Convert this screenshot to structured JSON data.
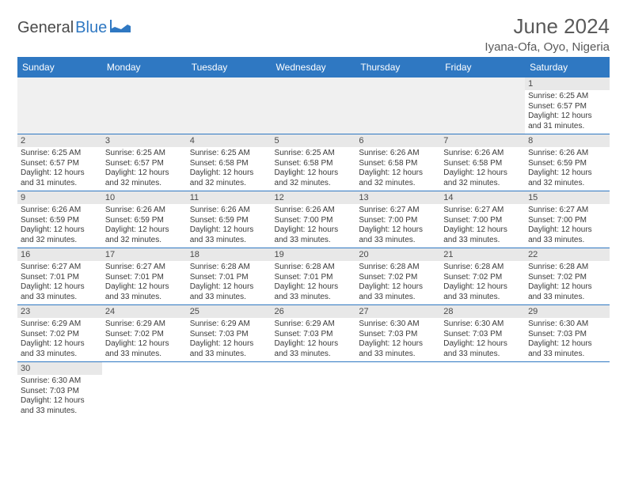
{
  "brand": {
    "text_dark": "General",
    "text_blue": "Blue"
  },
  "header": {
    "month_title": "June 2024",
    "location": "Iyana-Ofa, Oyo, Nigeria"
  },
  "colors": {
    "header_bg": "#2f78c2",
    "header_text": "#ffffff",
    "daynum_bg": "#e8e8e8",
    "row_divider": "#2f78c2",
    "body_text": "#3a3a3a",
    "title_text": "#5a5a5a",
    "empty_bg": "#f0f0f0"
  },
  "typography": {
    "title_fontsize": 26,
    "location_fontsize": 15,
    "dayheader_fontsize": 12,
    "daynum_fontsize": 11,
    "body_fontsize": 10
  },
  "day_headers": [
    "Sunday",
    "Monday",
    "Tuesday",
    "Wednesday",
    "Thursday",
    "Friday",
    "Saturday"
  ],
  "weeks": [
    [
      null,
      null,
      null,
      null,
      null,
      null,
      {
        "n": "1",
        "sr": "Sunrise: 6:25 AM",
        "ss": "Sunset: 6:57 PM",
        "dl": "Daylight: 12 hours and 31 minutes."
      }
    ],
    [
      {
        "n": "2",
        "sr": "Sunrise: 6:25 AM",
        "ss": "Sunset: 6:57 PM",
        "dl": "Daylight: 12 hours and 31 minutes."
      },
      {
        "n": "3",
        "sr": "Sunrise: 6:25 AM",
        "ss": "Sunset: 6:57 PM",
        "dl": "Daylight: 12 hours and 32 minutes."
      },
      {
        "n": "4",
        "sr": "Sunrise: 6:25 AM",
        "ss": "Sunset: 6:58 PM",
        "dl": "Daylight: 12 hours and 32 minutes."
      },
      {
        "n": "5",
        "sr": "Sunrise: 6:25 AM",
        "ss": "Sunset: 6:58 PM",
        "dl": "Daylight: 12 hours and 32 minutes."
      },
      {
        "n": "6",
        "sr": "Sunrise: 6:26 AM",
        "ss": "Sunset: 6:58 PM",
        "dl": "Daylight: 12 hours and 32 minutes."
      },
      {
        "n": "7",
        "sr": "Sunrise: 6:26 AM",
        "ss": "Sunset: 6:58 PM",
        "dl": "Daylight: 12 hours and 32 minutes."
      },
      {
        "n": "8",
        "sr": "Sunrise: 6:26 AM",
        "ss": "Sunset: 6:59 PM",
        "dl": "Daylight: 12 hours and 32 minutes."
      }
    ],
    [
      {
        "n": "9",
        "sr": "Sunrise: 6:26 AM",
        "ss": "Sunset: 6:59 PM",
        "dl": "Daylight: 12 hours and 32 minutes."
      },
      {
        "n": "10",
        "sr": "Sunrise: 6:26 AM",
        "ss": "Sunset: 6:59 PM",
        "dl": "Daylight: 12 hours and 32 minutes."
      },
      {
        "n": "11",
        "sr": "Sunrise: 6:26 AM",
        "ss": "Sunset: 6:59 PM",
        "dl": "Daylight: 12 hours and 33 minutes."
      },
      {
        "n": "12",
        "sr": "Sunrise: 6:26 AM",
        "ss": "Sunset: 7:00 PM",
        "dl": "Daylight: 12 hours and 33 minutes."
      },
      {
        "n": "13",
        "sr": "Sunrise: 6:27 AM",
        "ss": "Sunset: 7:00 PM",
        "dl": "Daylight: 12 hours and 33 minutes."
      },
      {
        "n": "14",
        "sr": "Sunrise: 6:27 AM",
        "ss": "Sunset: 7:00 PM",
        "dl": "Daylight: 12 hours and 33 minutes."
      },
      {
        "n": "15",
        "sr": "Sunrise: 6:27 AM",
        "ss": "Sunset: 7:00 PM",
        "dl": "Daylight: 12 hours and 33 minutes."
      }
    ],
    [
      {
        "n": "16",
        "sr": "Sunrise: 6:27 AM",
        "ss": "Sunset: 7:01 PM",
        "dl": "Daylight: 12 hours and 33 minutes."
      },
      {
        "n": "17",
        "sr": "Sunrise: 6:27 AM",
        "ss": "Sunset: 7:01 PM",
        "dl": "Daylight: 12 hours and 33 minutes."
      },
      {
        "n": "18",
        "sr": "Sunrise: 6:28 AM",
        "ss": "Sunset: 7:01 PM",
        "dl": "Daylight: 12 hours and 33 minutes."
      },
      {
        "n": "19",
        "sr": "Sunrise: 6:28 AM",
        "ss": "Sunset: 7:01 PM",
        "dl": "Daylight: 12 hours and 33 minutes."
      },
      {
        "n": "20",
        "sr": "Sunrise: 6:28 AM",
        "ss": "Sunset: 7:02 PM",
        "dl": "Daylight: 12 hours and 33 minutes."
      },
      {
        "n": "21",
        "sr": "Sunrise: 6:28 AM",
        "ss": "Sunset: 7:02 PM",
        "dl": "Daylight: 12 hours and 33 minutes."
      },
      {
        "n": "22",
        "sr": "Sunrise: 6:28 AM",
        "ss": "Sunset: 7:02 PM",
        "dl": "Daylight: 12 hours and 33 minutes."
      }
    ],
    [
      {
        "n": "23",
        "sr": "Sunrise: 6:29 AM",
        "ss": "Sunset: 7:02 PM",
        "dl": "Daylight: 12 hours and 33 minutes."
      },
      {
        "n": "24",
        "sr": "Sunrise: 6:29 AM",
        "ss": "Sunset: 7:02 PM",
        "dl": "Daylight: 12 hours and 33 minutes."
      },
      {
        "n": "25",
        "sr": "Sunrise: 6:29 AM",
        "ss": "Sunset: 7:03 PM",
        "dl": "Daylight: 12 hours and 33 minutes."
      },
      {
        "n": "26",
        "sr": "Sunrise: 6:29 AM",
        "ss": "Sunset: 7:03 PM",
        "dl": "Daylight: 12 hours and 33 minutes."
      },
      {
        "n": "27",
        "sr": "Sunrise: 6:30 AM",
        "ss": "Sunset: 7:03 PM",
        "dl": "Daylight: 12 hours and 33 minutes."
      },
      {
        "n": "28",
        "sr": "Sunrise: 6:30 AM",
        "ss": "Sunset: 7:03 PM",
        "dl": "Daylight: 12 hours and 33 minutes."
      },
      {
        "n": "29",
        "sr": "Sunrise: 6:30 AM",
        "ss": "Sunset: 7:03 PM",
        "dl": "Daylight: 12 hours and 33 minutes."
      }
    ],
    [
      {
        "n": "30",
        "sr": "Sunrise: 6:30 AM",
        "ss": "Sunset: 7:03 PM",
        "dl": "Daylight: 12 hours and 33 minutes."
      },
      null,
      null,
      null,
      null,
      null,
      null
    ]
  ]
}
